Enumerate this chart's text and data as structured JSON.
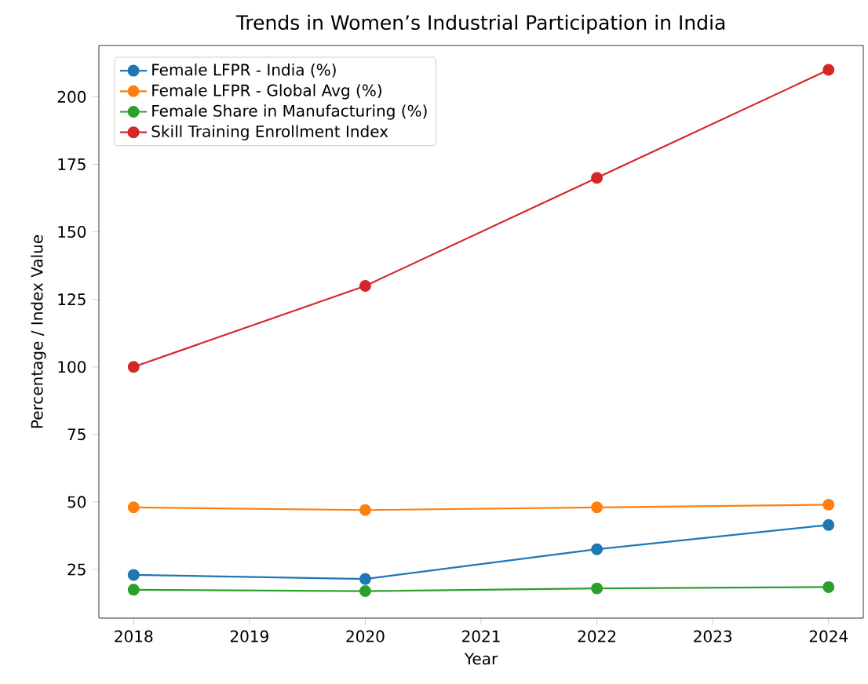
{
  "chart_data": {
    "type": "line",
    "title": "Trends in Women’s Industrial Participation in India",
    "xlabel": "Year",
    "ylabel": "Percentage / Index Value",
    "x": [
      2018,
      2020,
      2022,
      2024
    ],
    "series": [
      {
        "name": "Female LFPR - India (%)",
        "color": "#1f77b4",
        "values": [
          23,
          21.5,
          32.5,
          41.5
        ]
      },
      {
        "name": "Female LFPR - Global Avg (%)",
        "color": "#ff7f0e",
        "values": [
          48,
          47,
          48,
          49
        ]
      },
      {
        "name": "Female Share in Manufacturing (%)",
        "color": "#2ca02c",
        "values": [
          17.5,
          17,
          18,
          18.5
        ]
      },
      {
        "name": "Skill Training Enrollment Index",
        "color": "#d62728",
        "values": [
          100,
          130,
          170,
          210
        ]
      }
    ],
    "xlim": [
      2017.7,
      2024.3
    ],
    "ylim": [
      7,
      219
    ],
    "xticks": [
      2018,
      2019,
      2020,
      2021,
      2022,
      2023,
      2024
    ],
    "yticks": [
      25,
      50,
      75,
      100,
      125,
      150,
      175,
      200
    ],
    "legend": "top left",
    "marker": "circle",
    "line_style": "solid",
    "grid": false
  }
}
